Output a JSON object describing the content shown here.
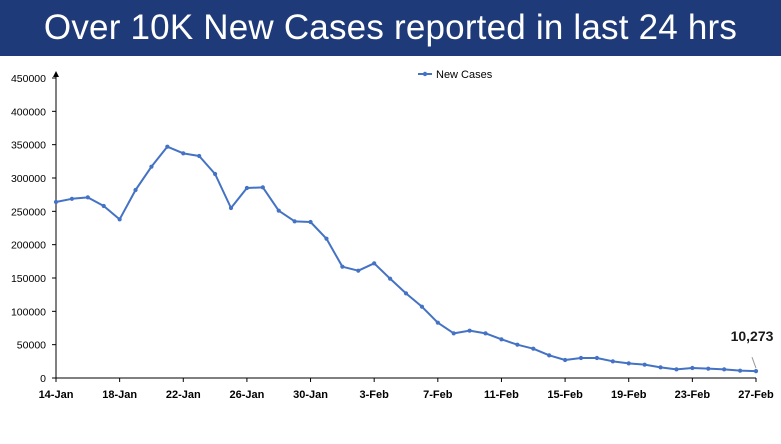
{
  "header": {
    "title": "Over 10K New Cases reported in last 24 hrs"
  },
  "chart_data": {
    "type": "line",
    "title": "",
    "xlabel": "",
    "ylabel": "",
    "ylim": [
      0,
      450000
    ],
    "yticks": [
      0,
      50000,
      100000,
      150000,
      200000,
      250000,
      300000,
      350000,
      400000,
      450000
    ],
    "grid": false,
    "legend_position": "top-center",
    "line_color": "#4472c4",
    "x_tick_labels": [
      "14-Jan",
      "18-Jan",
      "22-Jan",
      "26-Jan",
      "30-Jan",
      "3-Feb",
      "7-Feb",
      "11-Feb",
      "15-Feb",
      "19-Feb",
      "23-Feb",
      "27-Feb"
    ],
    "series": [
      {
        "name": "New Cases",
        "x": [
          "14-Jan",
          "15-Jan",
          "16-Jan",
          "17-Jan",
          "18-Jan",
          "19-Jan",
          "20-Jan",
          "21-Jan",
          "22-Jan",
          "23-Jan",
          "24-Jan",
          "25-Jan",
          "26-Jan",
          "27-Jan",
          "28-Jan",
          "29-Jan",
          "30-Jan",
          "31-Jan",
          "1-Feb",
          "2-Feb",
          "3-Feb",
          "4-Feb",
          "5-Feb",
          "6-Feb",
          "7-Feb",
          "8-Feb",
          "9-Feb",
          "10-Feb",
          "11-Feb",
          "12-Feb",
          "13-Feb",
          "14-Feb",
          "15-Feb",
          "16-Feb",
          "17-Feb",
          "18-Feb",
          "19-Feb",
          "20-Feb",
          "21-Feb",
          "22-Feb",
          "23-Feb",
          "24-Feb",
          "25-Feb",
          "26-Feb",
          "27-Feb"
        ],
        "values": [
          264000,
          268800,
          271000,
          258000,
          238000,
          282000,
          317000,
          347000,
          337000,
          333000,
          306000,
          255000,
          285000,
          286000,
          251000,
          235000,
          234000,
          209000,
          167000,
          161000,
          172000,
          149000,
          127000,
          107000,
          83000,
          67000,
          71000,
          67000,
          58000,
          50000,
          44000,
          34000,
          27000,
          30000,
          30000,
          25000,
          22000,
          20000,
          16000,
          13000,
          15000,
          14000,
          13000,
          11000,
          10273
        ]
      }
    ],
    "annotation": {
      "label": "10,273",
      "at": "27-Feb",
      "value": 10273
    }
  }
}
